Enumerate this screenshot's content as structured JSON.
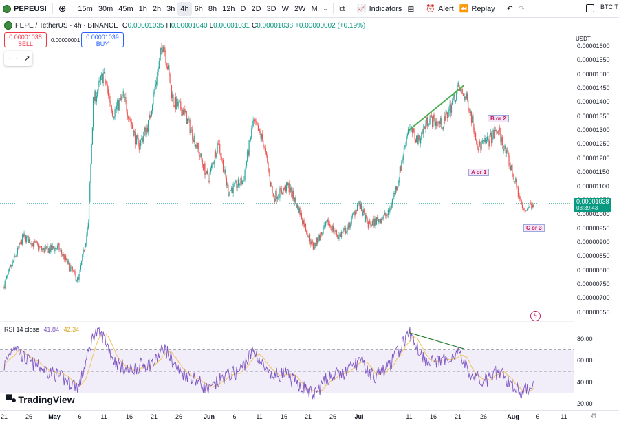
{
  "toolbar": {
    "symbol": "PEPEUSI",
    "intervals": [
      "15m",
      "30m",
      "45m",
      "1h",
      "2h",
      "3h",
      "4h",
      "6h",
      "8h",
      "12h",
      "D",
      "2D",
      "3D",
      "W",
      "2W",
      "M"
    ],
    "active_interval": "4h",
    "indicators_label": "Indicators",
    "alert_label": "Alert",
    "replay_label": "Replay",
    "btc_label": "BTC T",
    "icons": [
      "add-symbol-icon",
      "chevron-down-icon",
      "candles-icon",
      "indicators-icon",
      "templates-icon",
      "alert-icon",
      "replay-icon",
      "undo-icon",
      "redo-icon"
    ]
  },
  "legend": {
    "title": "PEPE / TetherUS · 4h · BINANCE",
    "o_key": "O",
    "o": "0.00001035",
    "h_key": "H",
    "h": "0.00001040",
    "l_key": "L",
    "l": "0.00001031",
    "c_key": "C",
    "c": "0.00001038",
    "change": "+0.00000002 (+0.19%)"
  },
  "trade": {
    "sell_price": "0.00001038",
    "sell_label": "SELL",
    "buy_price": "0.00001039",
    "buy_label": "BUY",
    "spread": "0.00000001"
  },
  "price_axis": {
    "quote": "USDT",
    "labels": [
      "0.00001600",
      "0.00001550",
      "0.00001500",
      "0.00001450",
      "0.00001400",
      "0.00001350",
      "0.00001300",
      "0.00001250",
      "0.00001200",
      "0.00001150",
      "0.00001100",
      "0.00001050",
      "0.00001000",
      "0.00000950",
      "0.00000900",
      "0.00000850",
      "0.00000800",
      "0.00000750",
      "0.00000700",
      "0.00000650"
    ],
    "current_price": "0.00001038",
    "countdown": "03:39:43",
    "rsi_labels": [
      "80.00",
      "60.00",
      "40.00",
      "20.00"
    ]
  },
  "rsi": {
    "label": "RSI 14 close",
    "value": "41.84",
    "ma_value": "42.34",
    "line_color": "#7e57c2",
    "ma_color": "#f0c25b"
  },
  "annotations": {
    "wave_b": "B or 2",
    "wave_a": "A or 1",
    "wave_c": "C or 3"
  },
  "time_axis": {
    "labels": [
      {
        "text": "21",
        "bold": false
      },
      {
        "text": "26",
        "bold": false
      },
      {
        "text": "May",
        "bold": true
      },
      {
        "text": "6",
        "bold": false
      },
      {
        "text": "11",
        "bold": false
      },
      {
        "text": "16",
        "bold": false
      },
      {
        "text": "21",
        "bold": false
      },
      {
        "text": "26",
        "bold": false
      },
      {
        "text": "Jun",
        "bold": true
      },
      {
        "text": "6",
        "bold": false
      },
      {
        "text": "11",
        "bold": false
      },
      {
        "text": "16",
        "bold": false
      },
      {
        "text": "21",
        "bold": false
      },
      {
        "text": "26",
        "bold": false
      },
      {
        "text": "Jul",
        "bold": true
      },
      {
        "text": "11",
        "bold": false
      },
      {
        "text": "16",
        "bold": false
      },
      {
        "text": "21",
        "bold": false
      },
      {
        "text": "26",
        "bold": false
      },
      {
        "text": "Aug",
        "bold": true
      },
      {
        "text": "6",
        "bold": false
      },
      {
        "text": "11",
        "bold": false
      }
    ]
  },
  "logo_text": "TradingView",
  "chart_data": {
    "type": "candlestick",
    "title": "PEPE / TetherUS · 4h · BINANCE",
    "ylim": [
      6.4e-06,
      1.63e-05
    ],
    "up_color": "#26a69a",
    "down_color": "#ef5350",
    "price_path": [
      [
        "Apr 21",
        7.4e-06
      ],
      [
        "Apr 25",
        9.2e-06
      ],
      [
        "Apr 29",
        8.7e-06
      ],
      [
        "May 2",
        8.8e-06
      ],
      [
        "May 6",
        7.6e-06
      ],
      [
        "May 8",
        9.6e-06
      ],
      [
        "May 9",
        1.4e-05
      ],
      [
        "May 11",
        1.5e-05
      ],
      [
        "May 13",
        1.36e-05
      ],
      [
        "May 15",
        1.42e-05
      ],
      [
        "May 18",
        1.24e-05
      ],
      [
        "May 20",
        1.32e-05
      ],
      [
        "May 23",
        1.62e-05
      ],
      [
        "May 25",
        1.4e-05
      ],
      [
        "May 27",
        1.37e-05
      ],
      [
        "May 29",
        1.28e-05
      ],
      [
        "Jun 1",
        1.12e-05
      ],
      [
        "Jun 3",
        1.26e-05
      ],
      [
        "Jun 5",
        1.08e-05
      ],
      [
        "Jun 8",
        1.12e-05
      ],
      [
        "Jun 10",
        1.33e-05
      ],
      [
        "Jun 12",
        1.26e-05
      ],
      [
        "Jun 14",
        1.06e-05
      ],
      [
        "Jun 17",
        1.1e-05
      ],
      [
        "Jun 19",
        1.02e-05
      ],
      [
        "Jun 22",
        8.8e-06
      ],
      [
        "Jun 25",
        9.7e-06
      ],
      [
        "Jun 27",
        9.2e-06
      ],
      [
        "Jun 29",
        9.5e-06
      ],
      [
        "Jul 1",
        1.04e-05
      ],
      [
        "Jul 3",
        9.6e-06
      ],
      [
        "Jul 7",
        1e-05
      ],
      [
        "Jul 9",
        1.12e-05
      ],
      [
        "Jul 11",
        1.31e-05
      ],
      [
        "Jul 13",
        1.26e-05
      ],
      [
        "Jul 15",
        1.34e-05
      ],
      [
        "Jul 18",
        1.32e-05
      ],
      [
        "Jul 21",
        1.45e-05
      ],
      [
        "Jul 23",
        1.4e-05
      ],
      [
        "Jul 25",
        1.24e-05
      ],
      [
        "Jul 27",
        1.26e-05
      ],
      [
        "Jul 29",
        1.3e-05
      ],
      [
        "Aug 1",
        1.14e-05
      ],
      [
        "Aug 3",
        1.01e-05
      ],
      [
        "Aug 5",
        1.04e-05
      ]
    ],
    "rsi_ylim": [
      15,
      92
    ],
    "rsi_levels": [
      70,
      50,
      30
    ],
    "rsi_path": [
      [
        "Apr 21",
        55
      ],
      [
        "Apr 23",
        76
      ],
      [
        "Apr 25",
        62
      ],
      [
        "Apr 28",
        54
      ],
      [
        "May 1",
        48
      ],
      [
        "May 4",
        40
      ],
      [
        "May 6",
        36
      ],
      [
        "May 8",
        70
      ],
      [
        "May 9",
        86
      ],
      [
        "May 11",
        82
      ],
      [
        "May 13",
        60
      ],
      [
        "May 16",
        50
      ],
      [
        "May 18",
        55
      ],
      [
        "May 21",
        58
      ],
      [
        "May 23",
        72
      ],
      [
        "May 26",
        50
      ],
      [
        "May 29",
        44
      ],
      [
        "Jun 1",
        32
      ],
      [
        "Jun 4",
        45
      ],
      [
        "Jun 7",
        50
      ],
      [
        "Jun 10",
        70
      ],
      [
        "Jun 13",
        45
      ],
      [
        "Jun 16",
        48
      ],
      [
        "Jun 19",
        38
      ],
      [
        "Jun 22",
        28
      ],
      [
        "Jun 25",
        45
      ],
      [
        "Jun 28",
        48
      ],
      [
        "Jul 1",
        60
      ],
      [
        "Jul 4",
        45
      ],
      [
        "Jul 7",
        55
      ],
      [
        "Jul 9",
        70
      ],
      [
        "Jul 11",
        86
      ],
      [
        "Jul 14",
        62
      ],
      [
        "Jul 17",
        58
      ],
      [
        "Jul 21",
        68
      ],
      [
        "Jul 23",
        48
      ],
      [
        "Jul 26",
        40
      ],
      [
        "Jul 29",
        50
      ],
      [
        "Aug 1",
        36
      ],
      [
        "Aug 3",
        30
      ],
      [
        "Aug 5",
        40
      ]
    ]
  }
}
